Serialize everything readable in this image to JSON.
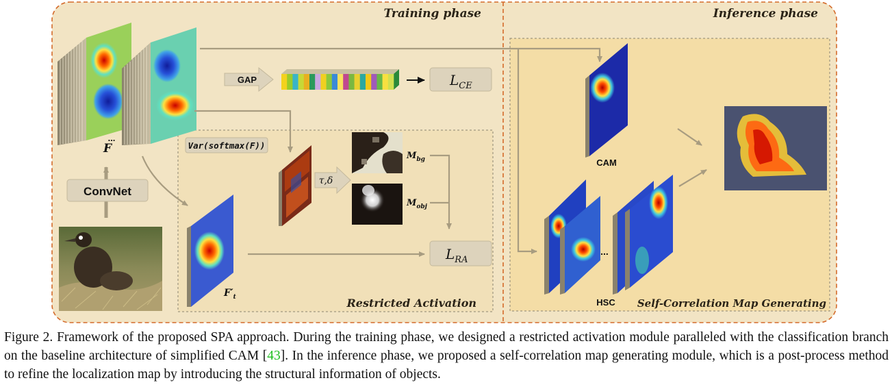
{
  "training_phase": {
    "title": "Training phase",
    "feature_label": "F",
    "ellipsis": "...",
    "backbone_label": "ConvNet",
    "gap_label": "GAP",
    "loss_ce": {
      "symbol": "L",
      "subscript": "CE"
    },
    "restricted_activation": {
      "title": "Restricted Activation",
      "var_formula": "Var(softmax(F))",
      "threshold_label": "τ,δ",
      "mask_bg": {
        "symbol": "M",
        "subscript": "bg"
      },
      "mask_obj": {
        "symbol": "M",
        "subscript": "obj"
      },
      "feature_t": {
        "symbol": "F′",
        "subscript": "t"
      },
      "loss_ra": {
        "symbol": "L",
        "subscript": "RA"
      }
    }
  },
  "inference_phase": {
    "title": "Inference phase",
    "cam_label": "CAM",
    "hsc_label": "HSC",
    "module_title": "Self-Correlation Map Generating",
    "ellipsis": "..."
  },
  "gap_vector_colors": [
    "#f4d21e",
    "#9ccc2a",
    "#3ab4c8",
    "#c8d836",
    "#e8b020",
    "#2a9a5a",
    "#c8a8e0",
    "#f0d020",
    "#8cc83c",
    "#3a8ad8",
    "#f8e060",
    "#c04890",
    "#7ab840",
    "#e8d030",
    "#2aa8a0",
    "#f0c818",
    "#a05ab8",
    "#68b848",
    "#f8e040",
    "#d0e050"
  ],
  "caption": {
    "prefix": "Figure 2. Framework of the proposed SPA approach. During the training phase, we designed a restricted activation module paralleled with the classification branch on the baseline architecture of simplified CAM [",
    "citation": "43",
    "suffix": "]. In the inference phase, we proposed a self-correlation map generating module, which is a post-process method to refine the localization map by introducing the structural information of objects."
  }
}
